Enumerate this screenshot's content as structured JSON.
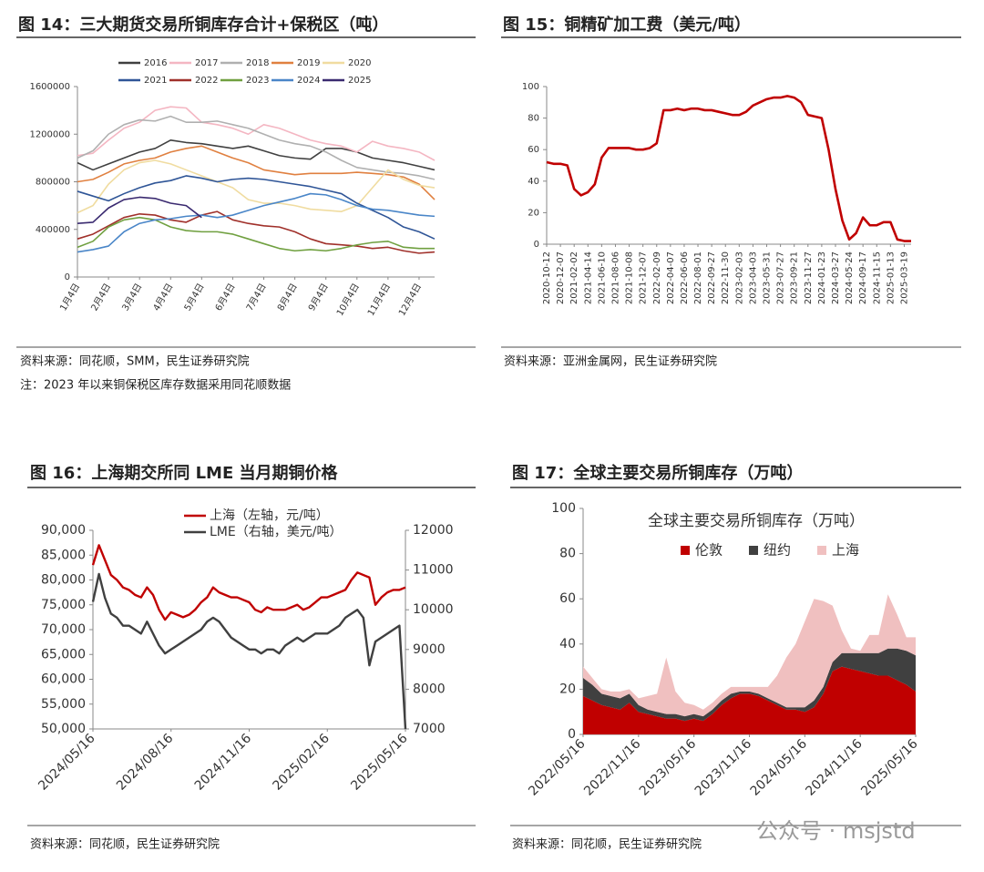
{
  "watermark": "公众号 · msjstd",
  "chart_data": [
    {
      "type": "line",
      "title": "图 14：三大期货交易所铜库存合计+保税区（吨）",
      "source": "资料来源：同花顺，SMM，民生证券研究院",
      "note": "注：2023 年以来铜保税区库存数据采用同花顺数据",
      "categories": [
        "1月4日",
        null,
        "2月4日",
        null,
        "3月4日",
        null,
        "4月4日",
        null,
        "5月4日",
        null,
        "6月4日",
        null,
        "7月4日",
        null,
        "8月4日",
        null,
        "9月4日",
        null,
        "10月4日",
        null,
        "11月4日",
        null,
        "12月4日",
        null
      ],
      "ylim": [
        0,
        1600000
      ],
      "yticks": [
        0,
        400000,
        800000,
        1200000,
        1600000
      ],
      "series": [
        {
          "name": "2016",
          "color": "#404040",
          "values": [
            960000,
            900000,
            950000,
            1000000,
            1050000,
            1080000,
            1150000,
            1130000,
            1120000,
            1100000,
            1080000,
            1100000,
            1060000,
            1020000,
            1000000,
            990000,
            1080000,
            1080000,
            1050000,
            1000000,
            980000,
            960000,
            930000,
            900000
          ]
        },
        {
          "name": "2017",
          "color": "#f4b6c2",
          "values": [
            1020000,
            1040000,
            1150000,
            1250000,
            1300000,
            1400000,
            1430000,
            1420000,
            1300000,
            1280000,
            1250000,
            1200000,
            1280000,
            1250000,
            1200000,
            1150000,
            1120000,
            1100000,
            1050000,
            1140000,
            1100000,
            1080000,
            1050000,
            980000
          ]
        },
        {
          "name": "2018",
          "color": "#b0b0b0",
          "values": [
            1000000,
            1060000,
            1200000,
            1280000,
            1320000,
            1310000,
            1350000,
            1300000,
            1300000,
            1310000,
            1280000,
            1250000,
            1200000,
            1150000,
            1120000,
            1100000,
            1050000,
            980000,
            920000,
            900000,
            880000,
            870000,
            850000,
            820000
          ]
        },
        {
          "name": "2019",
          "color": "#e08040",
          "values": [
            800000,
            820000,
            880000,
            950000,
            980000,
            1000000,
            1050000,
            1080000,
            1100000,
            1050000,
            1000000,
            960000,
            900000,
            880000,
            860000,
            870000,
            870000,
            870000,
            880000,
            870000,
            860000,
            840000,
            780000,
            650000
          ]
        },
        {
          "name": "2020",
          "color": "#f0dca0",
          "values": [
            540000,
            600000,
            780000,
            900000,
            960000,
            980000,
            950000,
            900000,
            850000,
            800000,
            750000,
            650000,
            620000,
            620000,
            600000,
            570000,
            560000,
            550000,
            600000,
            750000,
            900000,
            820000,
            770000,
            750000
          ]
        },
        {
          "name": "2021",
          "color": "#2f5597",
          "values": [
            720000,
            680000,
            640000,
            700000,
            750000,
            790000,
            810000,
            850000,
            830000,
            800000,
            820000,
            830000,
            820000,
            800000,
            780000,
            760000,
            730000,
            700000,
            620000,
            560000,
            500000,
            420000,
            380000,
            320000
          ]
        },
        {
          "name": "2022",
          "color": "#a0302a",
          "values": [
            320000,
            360000,
            430000,
            500000,
            530000,
            520000,
            480000,
            460000,
            520000,
            550000,
            480000,
            450000,
            430000,
            420000,
            380000,
            320000,
            280000,
            270000,
            260000,
            240000,
            250000,
            220000,
            200000,
            210000
          ]
        },
        {
          "name": "2023",
          "color": "#70a040",
          "values": [
            250000,
            300000,
            420000,
            480000,
            500000,
            480000,
            420000,
            390000,
            380000,
            380000,
            360000,
            320000,
            280000,
            240000,
            220000,
            230000,
            220000,
            240000,
            270000,
            290000,
            300000,
            250000,
            240000,
            240000
          ]
        },
        {
          "name": "2024",
          "color": "#4a86c8",
          "values": [
            210000,
            230000,
            260000,
            380000,
            450000,
            480000,
            490000,
            510000,
            520000,
            500000,
            520000,
            560000,
            600000,
            630000,
            660000,
            700000,
            690000,
            650000,
            600000,
            570000,
            560000,
            540000,
            520000,
            510000
          ]
        },
        {
          "name": "2025",
          "color": "#3a2a70",
          "values": [
            450000,
            460000,
            580000,
            650000,
            670000,
            660000,
            620000,
            600000,
            500000,
            null,
            null,
            null,
            null,
            null,
            null,
            null,
            null,
            null,
            null,
            null,
            null,
            null,
            null,
            null
          ]
        }
      ]
    },
    {
      "type": "line",
      "title": "图 15：铜精矿加工费（美元/吨）",
      "source": "资料来源：亚洲金属网，民生证券研究院",
      "categories": [
        "2020-10-12",
        null,
        "2020-12-07",
        null,
        "2021-02-02",
        null,
        "2021-04-14",
        null,
        "2021-06-10",
        null,
        "2021-08-06",
        null,
        "2021-10-08",
        null,
        "2021-12-07",
        null,
        "2022-02-09",
        null,
        "2022-04-07",
        null,
        "2022-06-06",
        null,
        "2022-08-01",
        null,
        "2022-09-27",
        null,
        "2022-11-30",
        null,
        "2023-02-03",
        null,
        "2023-04-03",
        null,
        "2023-05-31",
        null,
        "2023-07-27",
        null,
        "2023-09-21",
        null,
        "2023-11-27",
        null,
        "2024-01-23",
        null,
        "2024-03-27",
        null,
        "2024-05-24",
        null,
        "2024-09-17",
        null,
        "2024-11-15",
        null,
        "2025-01-13",
        null,
        "2025-03-19",
        null
      ],
      "values": [
        52,
        51,
        51,
        50,
        35,
        31,
        33,
        38,
        55,
        61,
        61,
        61,
        61,
        60,
        60,
        61,
        64,
        85,
        85,
        86,
        85,
        86,
        86,
        85,
        85,
        84,
        83,
        82,
        82,
        84,
        88,
        90,
        92,
        93,
        93,
        94,
        93,
        90,
        82,
        81,
        80,
        60,
        35,
        15,
        3,
        7,
        17,
        12,
        12,
        14,
        14,
        3,
        2,
        2
      ],
      "color": "#c00000",
      "ylim": [
        0,
        100
      ],
      "yticks": [
        0,
        20,
        40,
        60,
        80,
        100
      ]
    },
    {
      "type": "line",
      "title": "图 16：上海期交所同 LME 当月期铜价格",
      "source": "资料来源：同花顺，民生证券研究院",
      "categories": [
        "2024/05/16",
        null,
        null,
        null,
        null,
        null,
        null,
        null,
        null,
        null,
        null,
        null,
        null,
        "2024/08/16",
        null,
        null,
        null,
        null,
        null,
        null,
        null,
        null,
        null,
        null,
        null,
        null,
        "2024/11/16",
        null,
        null,
        null,
        null,
        null,
        null,
        null,
        null,
        null,
        null,
        null,
        null,
        "2025/02/16",
        null,
        null,
        null,
        null,
        null,
        null,
        null,
        null,
        null,
        null,
        null,
        null,
        "2025/05/16"
      ],
      "ylim": [
        50000,
        90000
      ],
      "yticks": [
        {
          "value": 50000,
          "label": "50,000"
        },
        {
          "value": 55000,
          "label": "55,000"
        },
        {
          "value": 60000,
          "label": "60,000"
        },
        {
          "value": 65000,
          "label": "65,000"
        },
        {
          "value": 70000,
          "label": "70,000"
        },
        {
          "value": 75000,
          "label": "75,000"
        },
        {
          "value": 80000,
          "label": "80,000"
        },
        {
          "value": 85000,
          "label": "85,000"
        },
        {
          "value": 90000,
          "label": "90,000"
        }
      ],
      "y2lim": [
        7000,
        12000
      ],
      "y2ticks": [
        7000,
        8000,
        9000,
        10000,
        11000,
        12000
      ],
      "series": [
        {
          "name": "上海（左轴，元/吨）",
          "color": "#c00000",
          "values": [
            83000,
            87000,
            84000,
            81000,
            80000,
            78500,
            78000,
            77000,
            76500,
            78500,
            77000,
            74000,
            72000,
            73500,
            73000,
            72500,
            73000,
            74000,
            75500,
            76500,
            78500,
            77500,
            77000,
            76500,
            76500,
            76000,
            75500,
            74000,
            73500,
            74500,
            74000,
            74000,
            74000,
            74500,
            75000,
            74000,
            74500,
            75500,
            76500,
            76500,
            77000,
            77500,
            78000,
            80000,
            81500,
            81000,
            80500,
            75000,
            76500,
            77500,
            78000,
            78000,
            78500
          ]
        },
        {
          "name": "LME（右轴，美元/吨）",
          "color": "#404040",
          "axis": "y2",
          "values": [
            10200,
            10900,
            10300,
            9900,
            9800,
            9600,
            9600,
            9500,
            9400,
            9700,
            9400,
            9100,
            8900,
            9000,
            9100,
            9200,
            9300,
            9400,
            9500,
            9700,
            9800,
            9700,
            9500,
            9300,
            9200,
            9100,
            9000,
            9000,
            8900,
            9000,
            9000,
            8900,
            9100,
            9200,
            9300,
            9200,
            9300,
            9400,
            9400,
            9400,
            9500,
            9600,
            9800,
            9900,
            10000,
            9800,
            8600,
            9200,
            9300,
            9400,
            9500,
            9600,
            7000
          ]
        }
      ]
    },
    {
      "type": "area",
      "stacked": true,
      "title": "图 17：全球主要交易所铜库存（万吨）",
      "plot_title": "全球主要交易所铜库存（万吨）",
      "source": "资料来源：同花顺，民生证券研究院",
      "categories": [
        "2022/05/16",
        null,
        null,
        null,
        null,
        null,
        "2022/11/16",
        null,
        null,
        null,
        null,
        null,
        "2023/05/16",
        null,
        null,
        null,
        null,
        null,
        "2023/11/16",
        null,
        null,
        null,
        null,
        null,
        "2024/05/16",
        null,
        null,
        null,
        null,
        null,
        "2024/11/16",
        null,
        null,
        null,
        null,
        null,
        "2025/05/16"
      ],
      "ylim": [
        0,
        100
      ],
      "yticks": [
        0,
        20,
        40,
        60,
        80,
        100
      ],
      "series": [
        {
          "name": "伦敦",
          "color": "#c00000",
          "values": [
            17,
            15,
            13,
            12,
            11,
            14,
            10,
            9,
            8,
            7,
            7,
            6,
            7,
            6,
            9,
            13,
            16,
            18,
            18,
            17,
            15,
            13,
            11,
            11,
            10,
            12,
            18,
            28,
            30,
            29,
            28,
            27,
            26,
            26,
            24,
            22,
            19
          ]
        },
        {
          "name": "纽约",
          "color": "#404040",
          "values": [
            8,
            7,
            5,
            5,
            5,
            4,
            3,
            2,
            2,
            2,
            2,
            2,
            2,
            2,
            2,
            2,
            2,
            1,
            1,
            1,
            1,
            1,
            1,
            1,
            2,
            3,
            3,
            4,
            6,
            7,
            8,
            9,
            10,
            12,
            14,
            15,
            16
          ]
        },
        {
          "name": "上海",
          "color": "#f0c0c0",
          "values": [
            5,
            3,
            2,
            2,
            3,
            2,
            3,
            6,
            8,
            25,
            10,
            6,
            4,
            3,
            3,
            3,
            3,
            2,
            2,
            3,
            5,
            12,
            22,
            28,
            38,
            45,
            38,
            25,
            10,
            2,
            1,
            8,
            8,
            24,
            15,
            6,
            8
          ]
        }
      ]
    }
  ]
}
